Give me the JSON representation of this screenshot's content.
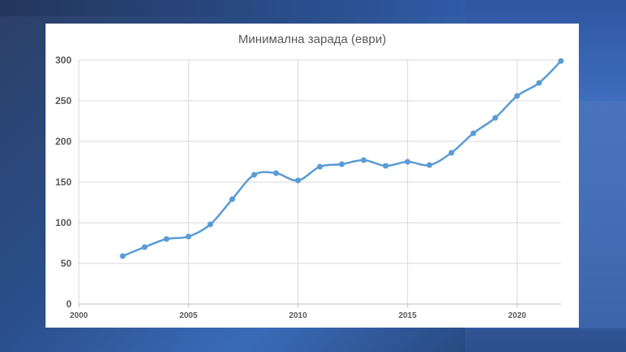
{
  "chart_data": {
    "type": "line",
    "title": "Минимална зарада (еври)",
    "xlabel": "",
    "ylabel": "",
    "xlim": [
      2000,
      2022
    ],
    "ylim": [
      0,
      300
    ],
    "x_ticks": [
      2000,
      2005,
      2010,
      2015,
      2020
    ],
    "y_ticks": [
      0,
      50,
      100,
      150,
      200,
      250,
      300
    ],
    "grid": true,
    "legend": "none",
    "series": [
      {
        "color": "#5b9bd5",
        "x": [
          2002,
          2003,
          2004,
          2005,
          2006,
          2007,
          2008,
          2009,
          2010,
          2011,
          2012,
          2013,
          2014,
          2015,
          2016,
          2017,
          2018,
          2019,
          2020,
          2021,
          2022
        ],
        "values": [
          59,
          70,
          80,
          83,
          98,
          129,
          159,
          161,
          152,
          169,
          172,
          177,
          170,
          175,
          171,
          186,
          210,
          229,
          256,
          272,
          299
        ]
      }
    ]
  }
}
